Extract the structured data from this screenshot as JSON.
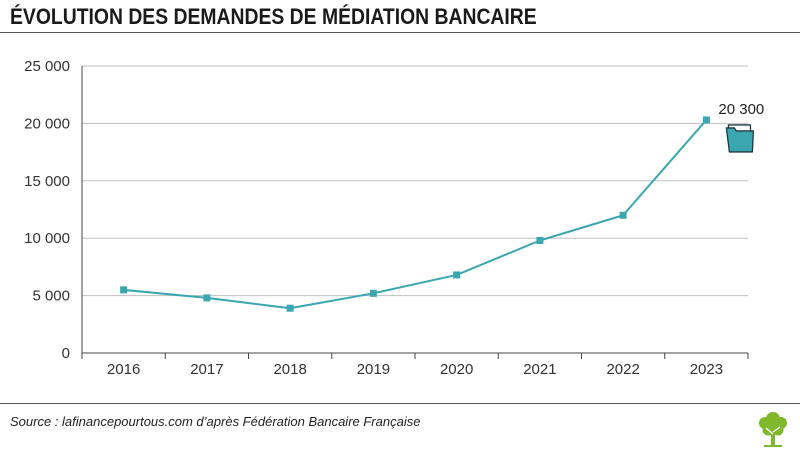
{
  "page": {
    "title": "ÉVOLUTION DES DEMANDES DE MÉDIATION BANCAIRE",
    "source": "Source : lafinancepourtous.com d’après Fédération Bancaire Française"
  },
  "colors": {
    "line": "#3aa6b0",
    "marker": "#3aa6b0",
    "folder_fill": "#3aa6b0",
    "folder_stroke": "#1d3a40",
    "grid": "#bfbfbf",
    "axis": "#444444",
    "logo": "#7fb82a"
  },
  "icons": {
    "annotation": "folder-icon",
    "logo": "tree-logo-icon"
  },
  "chart_data": {
    "type": "line",
    "title": "ÉVOLUTION DES DEMANDES DE MÉDIATION BANCAIRE",
    "xlabel": "",
    "ylabel": "",
    "categories": [
      "2016",
      "2017",
      "2018",
      "2019",
      "2020",
      "2021",
      "2022",
      "2023"
    ],
    "series": [
      {
        "values": [
          5500,
          4800,
          3900,
          5200,
          6800,
          9800,
          12000,
          20300
        ]
      }
    ],
    "ylim": [
      0,
      25000
    ],
    "yticks": [
      0,
      5000,
      10000,
      15000,
      20000,
      25000
    ],
    "ytick_labels": [
      "0",
      "5 000",
      "10 000",
      "15 000",
      "20 000",
      "25 000"
    ],
    "grid": true,
    "annotations": [
      {
        "category": "2023",
        "text": "20 300"
      }
    ]
  }
}
